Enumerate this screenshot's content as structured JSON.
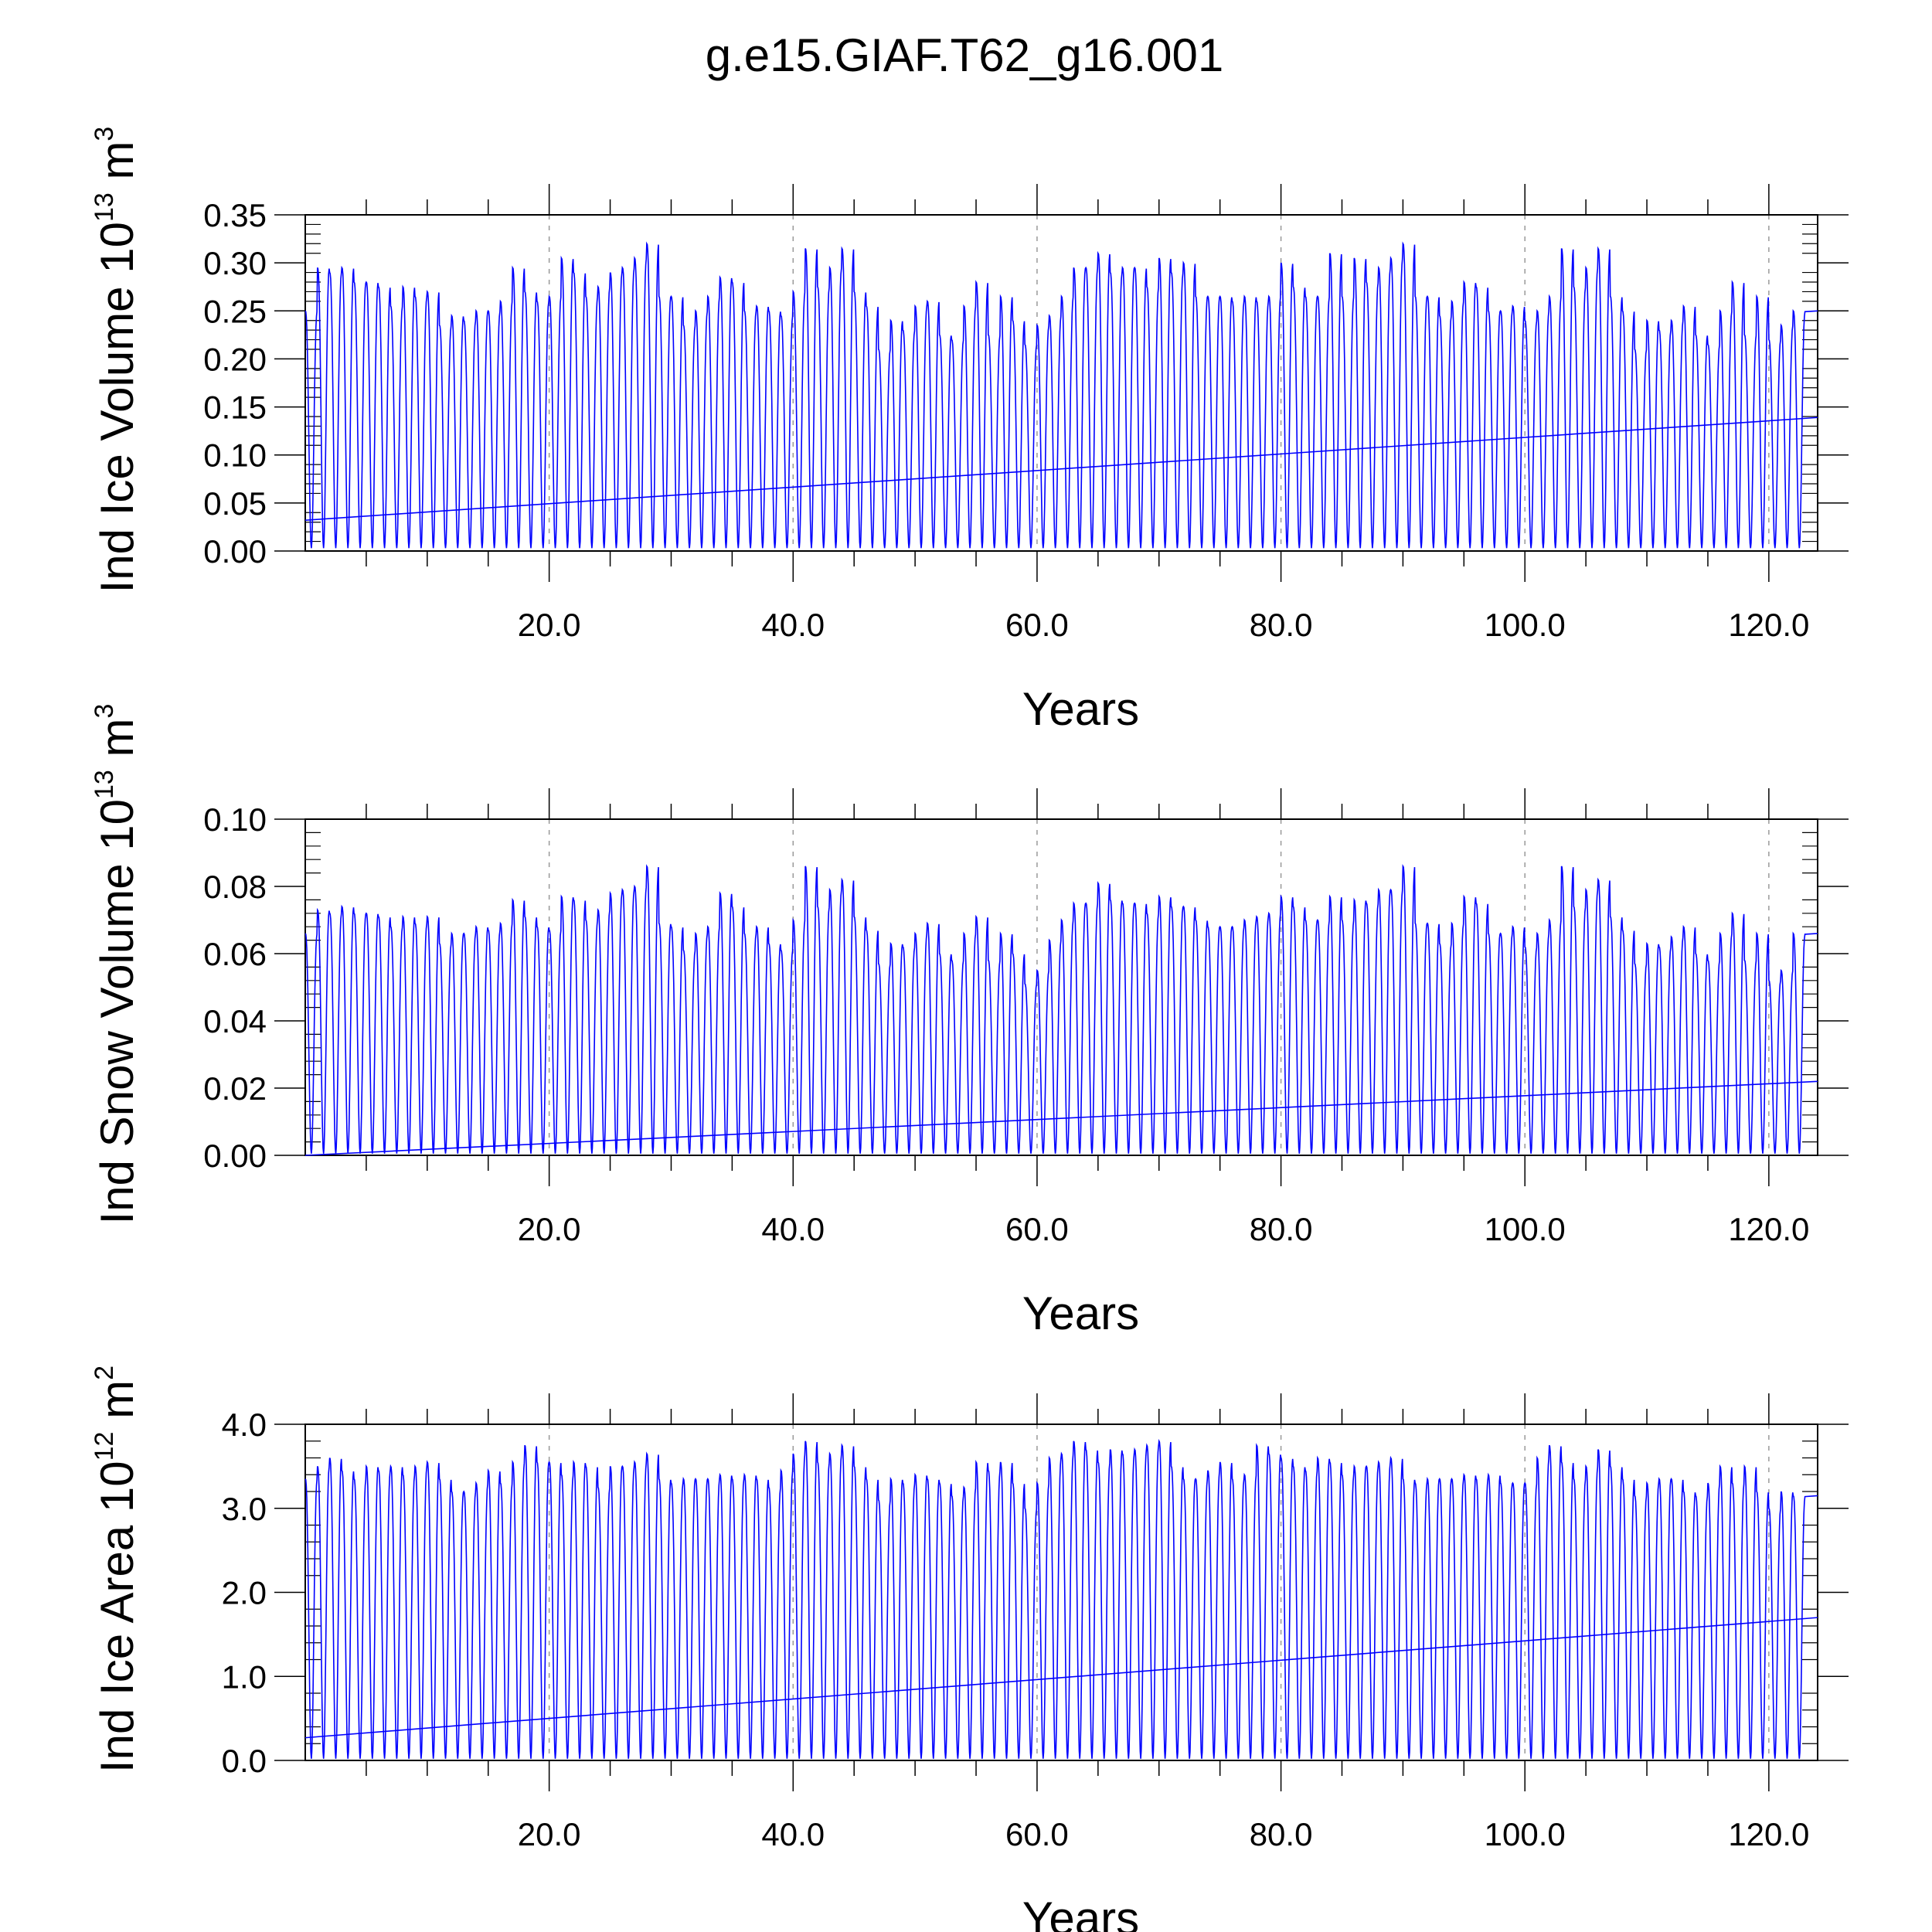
{
  "title": "g.e15.GIAF.T62_g16.001",
  "colors": {
    "series": "#0000ff",
    "axis": "#000000",
    "grid": "#999999",
    "background": "#ffffff"
  },
  "chart_data": [
    {
      "type": "line",
      "ylabel": {
        "main": "Ind Ice Volume 10",
        "exp": "13",
        "unit": " m",
        "unit_exp": "3"
      },
      "xlabel": "Years",
      "xlim": [
        0,
        124
      ],
      "ylim": [
        0,
        0.35
      ],
      "x_ticks": [
        "20.0",
        "40.0",
        "60.0",
        "80.0",
        "100.0",
        "120.0"
      ],
      "y_ticks": [
        "0.00",
        "0.05",
        "0.10",
        "0.15",
        "0.20",
        "0.25",
        "0.30",
        "0.35"
      ],
      "grid": "vertical dashed",
      "trend": {
        "start": 0.032,
        "end": 0.139
      },
      "annual_max": [
        0.25,
        0.295,
        0.29,
        0.295,
        0.28,
        0.28,
        0.275,
        0.255,
        0.275,
        0.265,
        0.27,
        0.235,
        0.245,
        0.24,
        0.25,
        0.25,
        0.26,
        0.295,
        0.27,
        0.26,
        0.265,
        0.305,
        0.29,
        0.265,
        0.275,
        0.29,
        0.295,
        0.305,
        0.32,
        0.265,
        0.265,
        0.235,
        0.25,
        0.265,
        0.285,
        0.28,
        0.25,
        0.255,
        0.25,
        0.245,
        0.27,
        0.315,
        0.275,
        0.295,
        0.315,
        0.27,
        0.255,
        0.21,
        0.24,
        0.23,
        0.255,
        0.26,
        0.225,
        0.22,
        0.255,
        0.28,
        0.225,
        0.265,
        0.24,
        0.215,
        0.235,
        0.245,
        0.265,
        0.295,
        0.295,
        0.31,
        0.29,
        0.295,
        0.295,
        0.275,
        0.305,
        0.29,
        0.3,
        0.265,
        0.265,
        0.265,
        0.26,
        0.265,
        0.26,
        0.265,
        0.3,
        0.275,
        0.265,
        0.265,
        0.31,
        0.265,
        0.305,
        0.28,
        0.295,
        0.305,
        0.32,
        0.265,
        0.265,
        0.245,
        0.26,
        0.28,
        0.275,
        0.25,
        0.25,
        0.255,
        0.24,
        0.25,
        0.265,
        0.315,
        0.275,
        0.295,
        0.315,
        0.265,
        0.25,
        0.21,
        0.24,
        0.23,
        0.24,
        0.255,
        0.225,
        0.215,
        0.25,
        0.28,
        0.225,
        0.265,
        0.22,
        0.235,
        0.25
      ],
      "annual_min": 0.003
    },
    {
      "type": "line",
      "ylabel": {
        "main": "Ind Snow Volume 10",
        "exp": "13",
        "unit": " m",
        "unit_exp": "3"
      },
      "xlabel": "Years",
      "xlim": [
        0,
        124
      ],
      "ylim": [
        0,
        0.1
      ],
      "x_ticks": [
        "20.0",
        "40.0",
        "60.0",
        "80.0",
        "100.0",
        "120.0"
      ],
      "y_ticks": [
        "0.00",
        "0.02",
        "0.04",
        "0.06",
        "0.08",
        "0.10"
      ],
      "grid": "vertical dashed",
      "trend": {
        "start": 0.0,
        "end": 0.022
      },
      "annual_max": [
        0.066,
        0.073,
        0.072,
        0.074,
        0.072,
        0.072,
        0.071,
        0.068,
        0.071,
        0.069,
        0.071,
        0.063,
        0.066,
        0.066,
        0.068,
        0.067,
        0.069,
        0.076,
        0.071,
        0.068,
        0.067,
        0.077,
        0.076,
        0.07,
        0.073,
        0.078,
        0.079,
        0.08,
        0.086,
        0.069,
        0.068,
        0.061,
        0.066,
        0.068,
        0.078,
        0.074,
        0.066,
        0.068,
        0.063,
        0.061,
        0.07,
        0.086,
        0.074,
        0.079,
        0.082,
        0.071,
        0.067,
        0.057,
        0.063,
        0.062,
        0.066,
        0.069,
        0.06,
        0.058,
        0.066,
        0.071,
        0.058,
        0.066,
        0.06,
        0.051,
        0.055,
        0.064,
        0.07,
        0.075,
        0.075,
        0.081,
        0.076,
        0.075,
        0.075,
        0.072,
        0.077,
        0.074,
        0.074,
        0.07,
        0.068,
        0.068,
        0.068,
        0.07,
        0.071,
        0.072,
        0.077,
        0.074,
        0.07,
        0.07,
        0.077,
        0.07,
        0.076,
        0.075,
        0.079,
        0.079,
        0.086,
        0.069,
        0.069,
        0.063,
        0.069,
        0.077,
        0.075,
        0.066,
        0.066,
        0.068,
        0.062,
        0.066,
        0.07,
        0.086,
        0.074,
        0.079,
        0.082,
        0.071,
        0.067,
        0.057,
        0.063,
        0.062,
        0.065,
        0.068,
        0.06,
        0.058,
        0.066,
        0.072,
        0.058,
        0.066,
        0.052,
        0.055,
        0.066
      ],
      "annual_min": 0.0005
    },
    {
      "type": "line",
      "ylabel": {
        "main": "Ind Ice Area 10",
        "exp": "12",
        "unit": " m",
        "unit_exp": "2"
      },
      "xlabel": "Years",
      "xlim": [
        0,
        124
      ],
      "ylim": [
        0,
        4.0
      ],
      "x_ticks": [
        "20.0",
        "40.0",
        "60.0",
        "80.0",
        "100.0",
        "120.0"
      ],
      "y_ticks": [
        "0.0",
        "1.0",
        "2.0",
        "3.0",
        "4.0"
      ],
      "grid": "vertical dashed",
      "trend": {
        "start": 0.27,
        "end": 1.7
      },
      "annual_max": [
        3.35,
        3.5,
        3.6,
        3.45,
        3.35,
        3.5,
        3.45,
        3.5,
        3.4,
        3.5,
        3.55,
        3.35,
        3.2,
        3.2,
        3.3,
        3.45,
        3.3,
        3.55,
        3.75,
        3.55,
        3.55,
        3.4,
        3.55,
        3.5,
        3.25,
        3.5,
        3.5,
        3.55,
        3.65,
        3.35,
        3.3,
        3.35,
        3.35,
        3.35,
        3.4,
        3.35,
        3.4,
        3.35,
        3.25,
        3.45,
        3.65,
        3.8,
        3.55,
        3.65,
        3.75,
        3.5,
        3.35,
        3.1,
        3.35,
        3.3,
        3.4,
        3.35,
        3.3,
        3.15,
        3.25,
        3.55,
        3.45,
        3.55,
        3.3,
        3.0,
        3.3,
        3.6,
        3.65,
        3.8,
        3.7,
        3.55,
        3.7,
        3.65,
        3.7,
        3.75,
        3.8,
        3.5,
        3.35,
        3.35,
        3.45,
        3.55,
        3.35,
        3.4,
        3.75,
        3.65,
        3.6,
        3.5,
        3.45,
        3.6,
        3.55,
        3.4,
        3.5,
        3.5,
        3.55,
        3.6,
        3.35,
        3.3,
        3.35,
        3.35,
        3.35,
        3.4,
        3.35,
        3.4,
        3.3,
        3.3,
        3.3,
        3.6,
        3.75,
        3.55,
        3.35,
        3.5,
        3.7,
        3.5,
        3.35,
        3.15,
        3.3,
        3.35,
        3.35,
        3.2,
        3.15,
        3.3,
        3.5,
        3.3,
        3.5,
        3.2,
        3.0,
        3.2,
        3.15
      ],
      "annual_min": 0.02
    }
  ]
}
